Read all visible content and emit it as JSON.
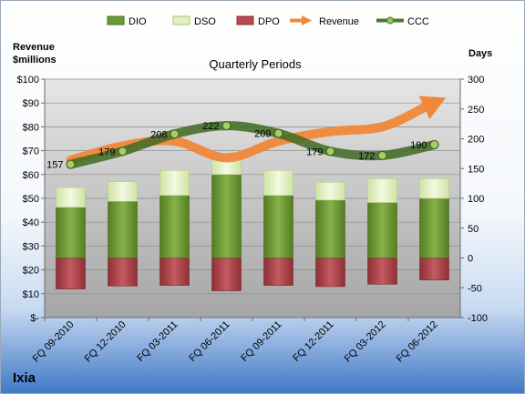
{
  "chart_data": {
    "type": "bar",
    "title": "Quarterly Periods",
    "company": "Ixia",
    "left_axis_label": [
      "Revenue",
      "$millions"
    ],
    "right_axis_label": "Days",
    "categories": [
      "FQ 09-2010",
      "FQ 12-2010",
      "FQ 03-2011",
      "FQ 06-2011",
      "FQ 09-2011",
      "FQ 12-2011",
      "FQ 03-2012",
      "FQ 06-2012"
    ],
    "left_axis": {
      "min": 0,
      "max": 100,
      "step": 10,
      "tick_labels": [
        "$-",
        "$10",
        "$20",
        "$30",
        "$40",
        "$50",
        "$60",
        "$70",
        "$80",
        "$90",
        "$100"
      ]
    },
    "right_axis": {
      "min": -100,
      "max": 300,
      "step": 50,
      "tick_labels": [
        "-100",
        "-50",
        "0",
        "50",
        "100",
        "150",
        "200",
        "250",
        "300"
      ]
    },
    "legend": {
      "position": "top",
      "items": [
        "DIO",
        "DSO",
        "DPO",
        "Revenue",
        "CCC"
      ]
    },
    "series": [
      {
        "name": "DIO",
        "axis": "right",
        "kind": "stacked-bar",
        "color": "#6b9a31",
        "values": [
          85,
          95,
          105,
          140,
          105,
          97,
          93,
          100
        ]
      },
      {
        "name": "DSO",
        "axis": "right",
        "kind": "stacked-bar",
        "color": "#e4f0c4",
        "values": [
          33,
          33,
          42,
          25,
          42,
          30,
          40,
          33
        ]
      },
      {
        "name": "DPO",
        "axis": "right",
        "kind": "stacked-bar-negative",
        "color": "#b74a50",
        "values": [
          -52,
          -47,
          -46,
          -55,
          -46,
          -48,
          -44,
          -37
        ]
      },
      {
        "name": "Revenue",
        "axis": "left",
        "kind": "line",
        "color": "#f0883a",
        "values": [
          66,
          72,
          74,
          67,
          74,
          78,
          80,
          90
        ]
      },
      {
        "name": "CCC",
        "axis": "right",
        "kind": "line",
        "color": "#4a7a2b",
        "values": [
          157,
          179,
          208,
          222,
          209,
          179,
          172,
          190
        ],
        "data_labels": [
          "157",
          "179",
          "208",
          "222",
          "209",
          "179",
          "172",
          "190"
        ]
      }
    ],
    "colors": {
      "background_top": "#ffffff",
      "background_bottom": "#3f78c6",
      "plot_top": "#e2e2e2",
      "plot_bottom": "#a8a8a8"
    },
    "grid": true
  }
}
